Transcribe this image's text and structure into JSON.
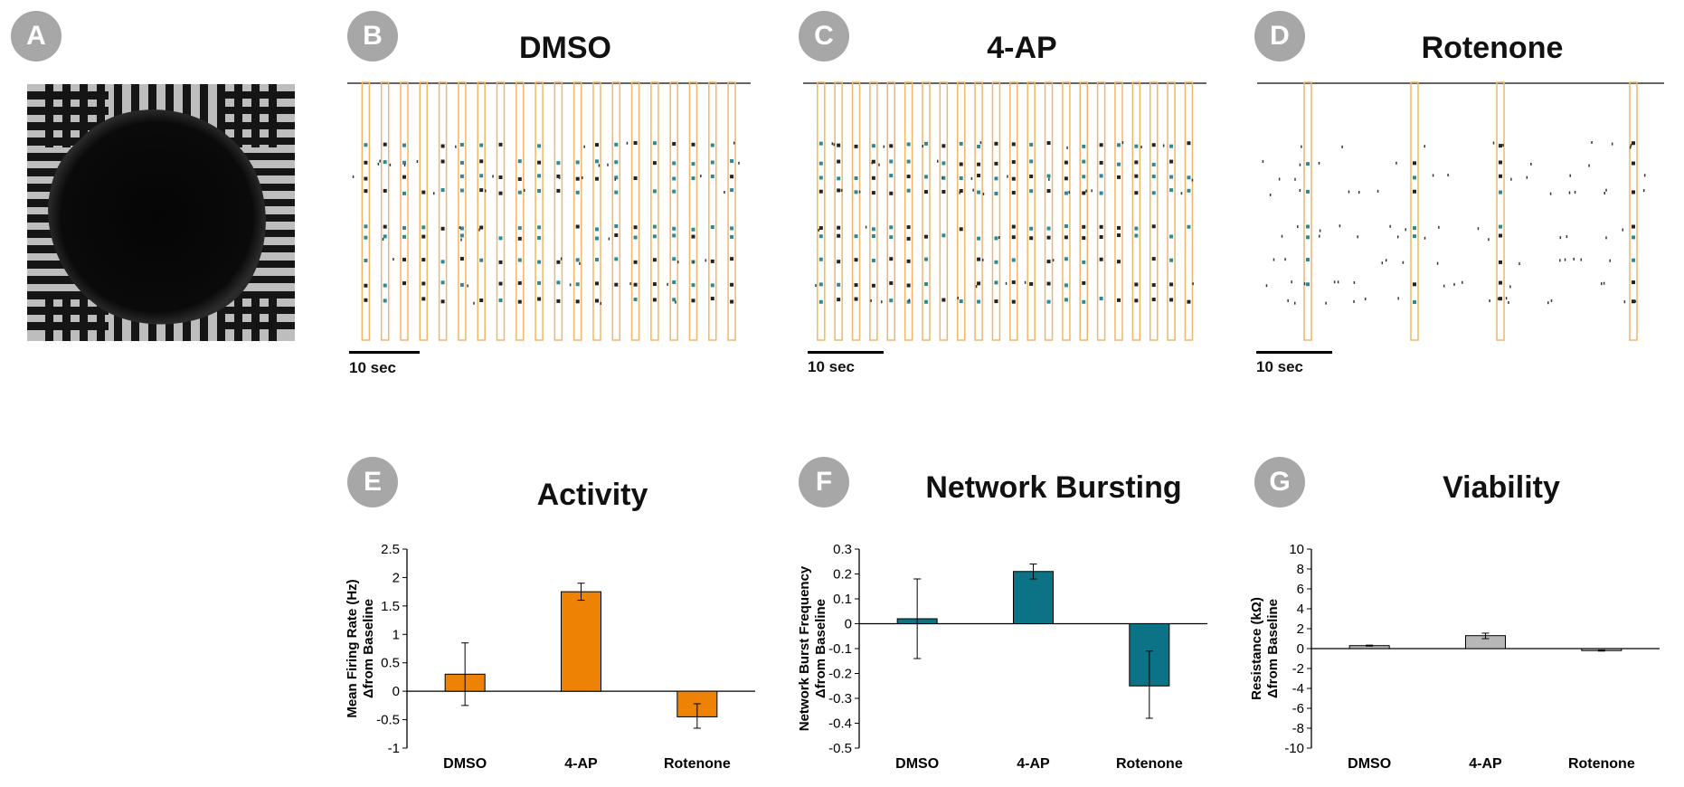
{
  "panels": {
    "A": {
      "letter": "A"
    },
    "B": {
      "letter": "B",
      "title": "DMSO",
      "scale": "10 sec"
    },
    "C": {
      "letter": "C",
      "title": "4-AP",
      "scale": "10 sec"
    },
    "D": {
      "letter": "D",
      "title": "Rotenone",
      "scale": "10 sec"
    },
    "E": {
      "letter": "E",
      "title": "Activity"
    },
    "F": {
      "letter": "F",
      "title": "Network Bursting"
    },
    "G": {
      "letter": "G",
      "title": "Viability"
    }
  },
  "rasters": [
    {
      "title": "DMSO",
      "burst_count": 20
    },
    {
      "title": "4-AP",
      "burst_count": 22
    },
    {
      "title": "Rotenone",
      "burst_count": 4
    }
  ],
  "chart_data": [
    {
      "type": "bar",
      "title": "Activity",
      "categories": [
        "DMSO",
        "4-AP",
        "Rotenone"
      ],
      "values": [
        0.3,
        1.75,
        -0.45
      ],
      "errors": [
        [
          -0.25,
          0.85
        ],
        [
          1.6,
          1.9
        ],
        [
          -0.65,
          -0.22
        ]
      ],
      "ylabel_line1": "Mean Firing Rate (Hz)",
      "ylabel_line2": "Δfrom Baseline",
      "ylim": [
        -1,
        2.5
      ],
      "yticks": [
        "2.5",
        "2",
        "1.5",
        "1",
        "0.5",
        "0",
        "-0.5",
        "-1"
      ],
      "color": "#ee8205"
    },
    {
      "type": "bar",
      "title": "Network Bursting",
      "categories": [
        "DMSO",
        "4-AP",
        "Rotenone"
      ],
      "values": [
        0.02,
        0.21,
        -0.25
      ],
      "errors": [
        [
          -0.14,
          0.18
        ],
        [
          0.18,
          0.24
        ],
        [
          -0.38,
          -0.11
        ]
      ],
      "ylabel_line1": "Network Burst Frequency",
      "ylabel_line2": "Δfrom Baseline",
      "ylim": [
        -0.5,
        0.3
      ],
      "yticks": [
        "0.3",
        "0.2",
        "0.1",
        "0",
        "-0.1",
        "-0.2",
        "-0.3",
        "-0.4",
        "-0.5"
      ],
      "color": "#0b7385"
    },
    {
      "type": "bar",
      "title": "Viability",
      "categories": [
        "DMSO",
        "4-AP",
        "Rotenone"
      ],
      "values": [
        0.3,
        1.3,
        -0.2
      ],
      "errors": [
        [
          0.25,
          0.35
        ],
        [
          1.0,
          1.55
        ],
        [
          -0.25,
          -0.15
        ]
      ],
      "ylabel_line1": "Resistance (kΩ)",
      "ylabel_line2": "Δfrom Baseline",
      "ylim": [
        -10,
        10
      ],
      "yticks": [
        "10",
        "8",
        "6",
        "4",
        "2",
        "0",
        "-2",
        "-4",
        "-6",
        "-8",
        "-10"
      ],
      "color": "#b7b7b7"
    }
  ]
}
